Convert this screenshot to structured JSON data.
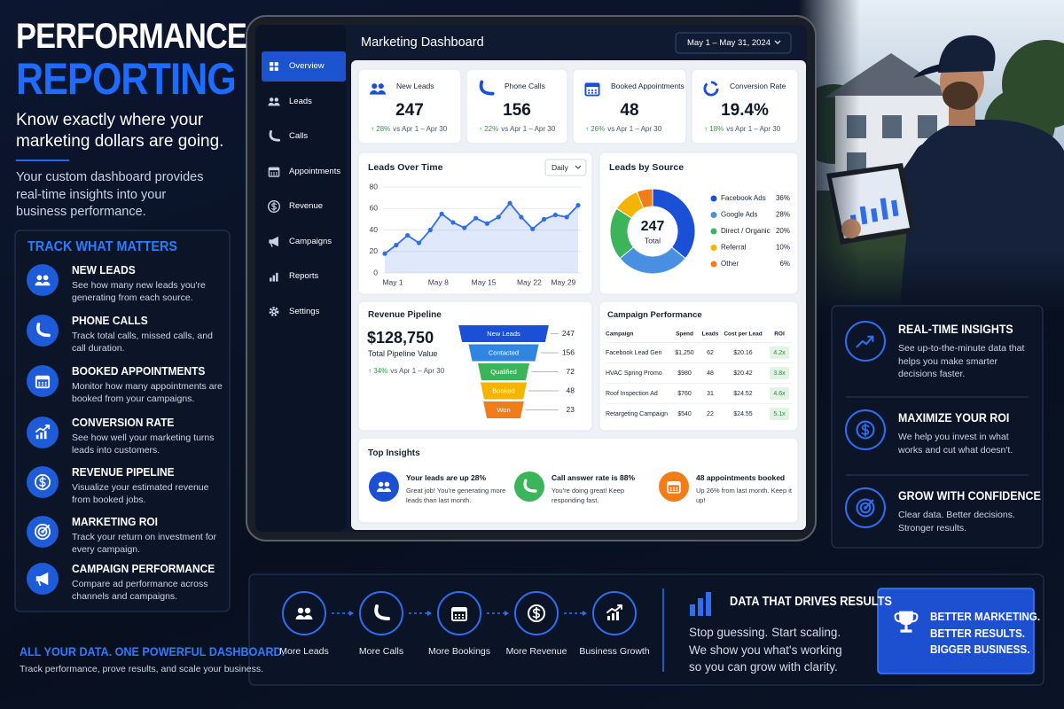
{
  "hero": {
    "title_1": "PERFORMANCE",
    "title_2": "REPORTING",
    "tagline": "Know exactly where your marketing dollars are going.",
    "intro": "Your custom dashboard provides real-time insights into your business performance."
  },
  "track": {
    "heading": "TRACK WHAT MATTERS",
    "items": [
      {
        "title": "NEW LEADS",
        "text": "See how many new leads you're generating from each source."
      },
      {
        "title": "PHONE CALLS",
        "text": "Track total calls, missed calls, and call duration."
      },
      {
        "title": "BOOKED APPOINTMENTS",
        "text": "Monitor how many appointments are booked from your campaigns."
      },
      {
        "title": "CONVERSION RATE",
        "text": "See how well your marketing turns leads into customers."
      },
      {
        "title": "REVENUE PIPELINE",
        "text": "Visualize your estimated revenue from booked jobs."
      },
      {
        "title": "MARKETING ROI",
        "text": "Track your return on investment for every campaign."
      },
      {
        "title": "CAMPAIGN PERFORMANCE",
        "text": "Compare ad performance across channels and campaigns."
      }
    ]
  },
  "slogan": {
    "heading": "ALL YOUR DATA. ONE POWERFUL DASHBOARD.",
    "text": "Track performance, prove results, and scale your business."
  },
  "dashboard": {
    "title": "Marketing Dashboard",
    "date_range": "May 1 – May 31, 2024",
    "nav": [
      "Overview",
      "Leads",
      "Calls",
      "Appointments",
      "Revenue",
      "Campaigns",
      "Reports",
      "Settings"
    ],
    "kpis": [
      {
        "label": "New Leads",
        "value": "247",
        "change": "↑ 28%",
        "compare": "vs Apr 1 – Apr 30"
      },
      {
        "label": "Phone Calls",
        "value": "156",
        "change": "↑ 22%",
        "compare": "vs Apr 1 – Apr 30"
      },
      {
        "label": "Booked Appointments",
        "value": "48",
        "change": "↑ 26%",
        "compare": "vs Apr 1 – Apr 30"
      },
      {
        "label": "Conversion Rate",
        "value": "19.4%",
        "change": "↑ 18%",
        "compare": "vs Apr 1 – Apr 30"
      }
    ],
    "campaigns": {
      "title": "Campaign Performance",
      "columns": [
        "Campaign",
        "Spend",
        "Leads",
        "Cost per Lead",
        "ROI"
      ],
      "rows": [
        [
          "Facebook Lead Gen",
          "$1,250",
          "62",
          "$20.16",
          "4.2x"
        ],
        [
          "HVAC Spring Promo",
          "$980",
          "48",
          "$20.42",
          "3.8x"
        ],
        [
          "Roof Inspection Ad",
          "$760",
          "31",
          "$24.52",
          "4.6x"
        ],
        [
          "Retargeting Campaign",
          "$540",
          "22",
          "$24.55",
          "5.1x"
        ]
      ]
    },
    "insights": {
      "title": "Top Insights",
      "items": [
        {
          "title": "Your leads are up 28%",
          "text": "Great job! You're generating more leads than last month."
        },
        {
          "title": "Call answer rate is 88%",
          "text": "You're doing great! Keep responding fast."
        },
        {
          "title": "48 appointments booked",
          "text": "Up 26% from last month. Keep it up!"
        }
      ]
    }
  },
  "chart_data": [
    {
      "type": "line",
      "title": "Leads Over Time",
      "control": "Daily",
      "categories": [
        "May 1",
        null,
        null,
        null,
        "May 8",
        null,
        null,
        null,
        "May 15",
        null,
        null,
        null,
        "May 22",
        null,
        null,
        "May 29",
        null,
        null
      ],
      "values": [
        18,
        26,
        35,
        28,
        40,
        55,
        47,
        42,
        51,
        46,
        52,
        65,
        52,
        41,
        50,
        54,
        52,
        63
      ],
      "color": "#2f6ee6",
      "ylim": [
        0,
        80
      ],
      "yticks": [
        0,
        20,
        40,
        60,
        80
      ],
      "grid": true
    },
    {
      "type": "pie",
      "title": "Leads by Source",
      "center_value": 247,
      "center_label": "Total",
      "categories": [
        "Facebook Ads",
        "Google Ads",
        "Direct / Organic",
        "Referral",
        "Other"
      ],
      "values": [
        36,
        28,
        20,
        10,
        6
      ],
      "value_labels": [
        "36%",
        "28%",
        "20%",
        "10%",
        "6%"
      ],
      "colors": [
        "#1a4fd6",
        "#4a90e2",
        "#3cb55a",
        "#f5b400",
        "#f07c1a"
      ]
    },
    {
      "type": "funnel",
      "title": "Revenue Pipeline",
      "total": "$128,750",
      "total_label": "Total Pipeline Value",
      "change": "↑ 34%",
      "compare": "vs Apr 1 – Apr 30",
      "categories": [
        "New Leads",
        "Contacted",
        "Qualified",
        "Booked",
        "Won"
      ],
      "values": [
        247,
        156,
        72,
        48,
        23
      ],
      "colors": [
        "#1a4fd6",
        "#2f86e0",
        "#3cb55a",
        "#f5b400",
        "#f07c1a"
      ]
    }
  ],
  "benefits": [
    {
      "title": "REAL-TIME INSIGHTS",
      "text": "See up-to-the-minute data that helps you make smarter decisions faster."
    },
    {
      "title": "MAXIMIZE YOUR ROI",
      "text": "We help you invest in what works and cut what doesn't."
    },
    {
      "title": "GROW WITH CONFIDENCE",
      "text": "Clear data. Better decisions. Stronger results."
    }
  ],
  "flow": {
    "steps": [
      "More Leads",
      "More Calls",
      "More Bookings",
      "More Revenue",
      "Business Growth"
    ],
    "heading": "DATA THAT DRIVES RESULTS",
    "text": "Stop guessing. Start scaling. We show you what's working so you can grow with clarity.",
    "callout": [
      "BETTER MARKETING.",
      "BETTER RESULTS.",
      "BIGGER BUSINESS."
    ]
  }
}
